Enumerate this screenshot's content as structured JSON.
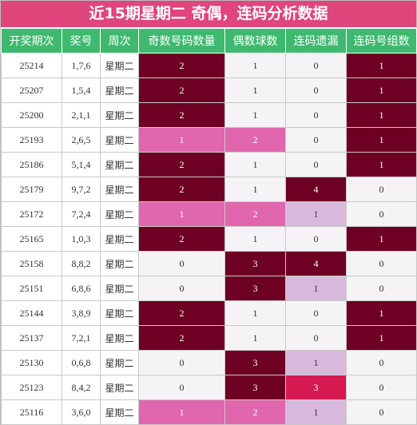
{
  "title": "近15期星期二 奇偶，连码分析数据",
  "headers": [
    "开奖期次",
    "奖号",
    "周次",
    "奇数号码数量",
    "偶数球数",
    "连码遗漏",
    "连码号组数"
  ],
  "colors": {
    "title_bg": "#e0457b",
    "header_bg": "#3eb96f",
    "dark": "#6e0023",
    "pink": "#e066ad",
    "light": "#d8b9dc",
    "red": "#d51a52",
    "plain": "#f5f3f6"
  },
  "rows": [
    {
      "issue": "25214",
      "numbers": "1,7,6",
      "week": "星期二",
      "odd": "2",
      "even": "1",
      "miss": "0",
      "groups": "1",
      "odd_style": "dark",
      "even_style": "plain",
      "miss_style": "plain",
      "groups_style": "dark"
    },
    {
      "issue": "25207",
      "numbers": "1,5,4",
      "week": "星期二",
      "odd": "2",
      "even": "1",
      "miss": "0",
      "groups": "1",
      "odd_style": "dark",
      "even_style": "plain",
      "miss_style": "plain",
      "groups_style": "dark"
    },
    {
      "issue": "25200",
      "numbers": "2,1,1",
      "week": "星期二",
      "odd": "2",
      "even": "1",
      "miss": "0",
      "groups": "1",
      "odd_style": "dark",
      "even_style": "plain",
      "miss_style": "plain",
      "groups_style": "dark"
    },
    {
      "issue": "25193",
      "numbers": "2,6,5",
      "week": "星期二",
      "odd": "1",
      "even": "2",
      "miss": "0",
      "groups": "1",
      "odd_style": "pink",
      "even_style": "pink",
      "miss_style": "plain",
      "groups_style": "dark"
    },
    {
      "issue": "25186",
      "numbers": "5,1,4",
      "week": "星期二",
      "odd": "2",
      "even": "1",
      "miss": "0",
      "groups": "1",
      "odd_style": "dark",
      "even_style": "plain",
      "miss_style": "plain",
      "groups_style": "dark"
    },
    {
      "issue": "25179",
      "numbers": "9,7,2",
      "week": "星期二",
      "odd": "2",
      "even": "1",
      "miss": "4",
      "groups": "0",
      "odd_style": "dark",
      "even_style": "plain",
      "miss_style": "dark",
      "groups_style": "plain"
    },
    {
      "issue": "25172",
      "numbers": "7,2,4",
      "week": "星期二",
      "odd": "1",
      "even": "2",
      "miss": "1",
      "groups": "0",
      "odd_style": "pink",
      "even_style": "pink",
      "miss_style": "light",
      "groups_style": "plain"
    },
    {
      "issue": "25165",
      "numbers": "1,0,3",
      "week": "星期二",
      "odd": "2",
      "even": "1",
      "miss": "0",
      "groups": "1",
      "odd_style": "dark",
      "even_style": "plain",
      "miss_style": "plain",
      "groups_style": "dark"
    },
    {
      "issue": "25158",
      "numbers": "8,8,2",
      "week": "星期二",
      "odd": "0",
      "even": "3",
      "miss": "4",
      "groups": "0",
      "odd_style": "plain",
      "even_style": "dark",
      "miss_style": "dark",
      "groups_style": "plain"
    },
    {
      "issue": "25151",
      "numbers": "6,8,6",
      "week": "星期二",
      "odd": "0",
      "even": "3",
      "miss": "1",
      "groups": "0",
      "odd_style": "plain",
      "even_style": "dark",
      "miss_style": "light",
      "groups_style": "plain"
    },
    {
      "issue": "25144",
      "numbers": "3,8,9",
      "week": "星期二",
      "odd": "2",
      "even": "1",
      "miss": "0",
      "groups": "1",
      "odd_style": "dark",
      "even_style": "plain",
      "miss_style": "plain",
      "groups_style": "dark"
    },
    {
      "issue": "25137",
      "numbers": "7,2,1",
      "week": "星期二",
      "odd": "2",
      "even": "1",
      "miss": "0",
      "groups": "1",
      "odd_style": "dark",
      "even_style": "plain",
      "miss_style": "plain",
      "groups_style": "dark"
    },
    {
      "issue": "25130",
      "numbers": "0,6,8",
      "week": "星期二",
      "odd": "0",
      "even": "3",
      "miss": "1",
      "groups": "0",
      "odd_style": "plain",
      "even_style": "dark",
      "miss_style": "light",
      "groups_style": "plain"
    },
    {
      "issue": "25123",
      "numbers": "8,4,2",
      "week": "星期二",
      "odd": "0",
      "even": "3",
      "miss": "3",
      "groups": "0",
      "odd_style": "plain",
      "even_style": "dark",
      "miss_style": "red",
      "groups_style": "plain"
    },
    {
      "issue": "25116",
      "numbers": "3,6,0",
      "week": "星期二",
      "odd": "1",
      "even": "2",
      "miss": "1",
      "groups": "0",
      "odd_style": "pink",
      "even_style": "pink",
      "miss_style": "light",
      "groups_style": "plain"
    }
  ]
}
